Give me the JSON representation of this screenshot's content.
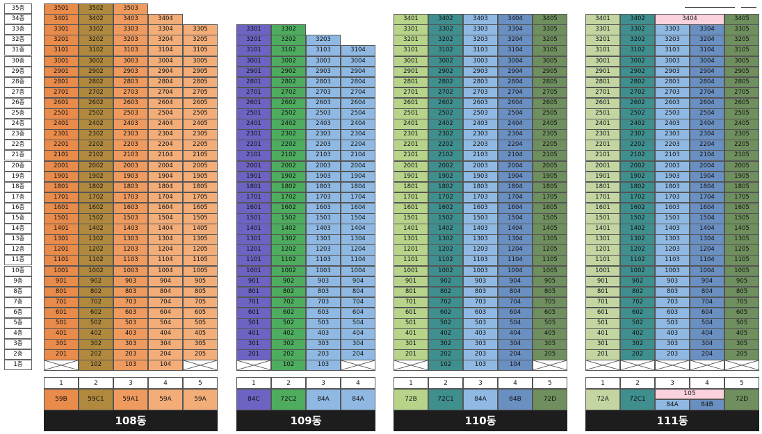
{
  "floors": [
    "35층",
    "34층",
    "33층",
    "32층",
    "31층",
    "30층",
    "29층",
    "28층",
    "27층",
    "26층",
    "25층",
    "24층",
    "23층",
    "22층",
    "21층",
    "20층",
    "19층",
    "18층",
    "17층",
    "16층",
    "15층",
    "14층",
    "13층",
    "12층",
    "11층",
    "10층",
    "9층",
    "8층",
    "7층",
    "6층",
    "5층",
    "4층",
    "3층",
    "2층",
    "1층"
  ],
  "buildings": [
    {
      "name": "108동",
      "columns": [
        {
          "no": "1",
          "type": "59B",
          "color": "#e98b4b",
          "top": 35,
          "first_floor_unit": null
        },
        {
          "no": "2",
          "type": "59C1",
          "color": "#b0893e",
          "top": 35,
          "first_floor_unit": "102"
        },
        {
          "no": "3",
          "type": "59A1",
          "color": "#ef9b5f",
          "top": 35,
          "first_floor_unit": "103"
        },
        {
          "no": "4",
          "type": "59A",
          "color": "#f2ad79",
          "top": 34,
          "first_floor_unit": "104"
        },
        {
          "no": "5",
          "type": "59A",
          "color": "#f2ad79",
          "top": 33,
          "first_floor_unit": null
        }
      ]
    },
    {
      "name": "109동",
      "columns": [
        {
          "no": "1",
          "type": "84C",
          "color": "#6d63c3",
          "top": 33,
          "first_floor_unit": null
        },
        {
          "no": "2",
          "type": "72C2",
          "color": "#4dac5e",
          "top": 33,
          "first_floor_unit": "102"
        },
        {
          "no": "3",
          "type": "84A",
          "color": "#8fb9e2",
          "top": 32,
          "first_floor_unit": "103"
        },
        {
          "no": "4",
          "type": "84A",
          "color": "#8fb9e2",
          "top": 31,
          "first_floor_unit": null
        }
      ]
    },
    {
      "name": "110동",
      "columns": [
        {
          "no": "1",
          "type": "72B",
          "color": "#b8d48b",
          "top": 34,
          "first_floor_unit": null
        },
        {
          "no": "2",
          "type": "72C1",
          "color": "#3f8f8e",
          "top": 34,
          "first_floor_unit": "102"
        },
        {
          "no": "3",
          "type": "84A",
          "color": "#8fb9e2",
          "top": 34,
          "first_floor_unit": "103"
        },
        {
          "no": "4",
          "type": "84B",
          "color": "#6a8fc1",
          "top": 34,
          "first_floor_unit": "104"
        },
        {
          "no": "5",
          "type": "72D",
          "color": "#6f8f5e",
          "top": 34,
          "first_floor_unit": null
        }
      ]
    },
    {
      "name": "111동",
      "columns": [
        {
          "no": "1",
          "type": "72A",
          "color": "#c3d6a2",
          "top": 34,
          "first_floor_unit": null
        },
        {
          "no": "2",
          "type": "72C1",
          "color": "#3f8f8e",
          "top": 34,
          "first_floor_unit": null
        },
        {
          "no": "3",
          "type": "84A",
          "color": "#8fb9e2",
          "top": 34,
          "first_floor_unit": null
        },
        {
          "no": "4",
          "type": "84B",
          "color": "#6a8fc1",
          "top": 34,
          "first_floor_unit": null
        },
        {
          "no": "5",
          "type": "72D",
          "color": "#6f8f5e",
          "top": 34,
          "first_floor_unit": null
        }
      ],
      "merged_unit": {
        "label": "3404",
        "color": "#f9d2dc",
        "from": 3,
        "to": 4,
        "floor": 34
      },
      "merged_type": {
        "label": "105",
        "color": "#f9d2dc",
        "from": 3,
        "to": 4
      }
    }
  ]
}
